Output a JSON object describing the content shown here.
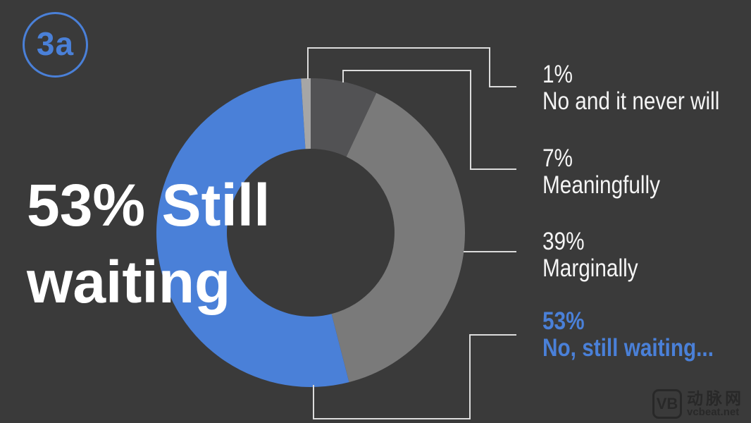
{
  "badge": {
    "label": "3a"
  },
  "title": {
    "line1": "53% Still",
    "line2": "waiting"
  },
  "legend": {
    "items": [
      {
        "pct": "1%",
        "caption": "No and it never will"
      },
      {
        "pct": "7%",
        "caption": "Meaningfully"
      },
      {
        "pct": "39%",
        "caption": "Marginally"
      },
      {
        "pct": "53%",
        "caption": "No, still waiting..."
      }
    ]
  },
  "watermark": {
    "logo": "VB",
    "name": "动脉网",
    "site": "vcbeat.net"
  },
  "colors": {
    "background": "#3a3a3a",
    "accent": "#4a80d8",
    "text": "#f5f5f5",
    "connector": "#dcdcdc"
  },
  "chart_data": {
    "type": "pie",
    "donut": true,
    "title": "53% Still waiting",
    "segments": [
      {
        "label": "No and it never will",
        "value": 1,
        "color": "#a6a6a6"
      },
      {
        "label": "Meaningfully",
        "value": 7,
        "color": "#525254"
      },
      {
        "label": "Marginally",
        "value": 39,
        "color": "#7a7a7a"
      },
      {
        "label": "No, still waiting...",
        "value": 53,
        "color": "#4a80d8"
      }
    ],
    "draw_order_clockwise_from_top": [
      1,
      2,
      3,
      0
    ],
    "start_angle_deg": 0,
    "legend_position": "right"
  }
}
